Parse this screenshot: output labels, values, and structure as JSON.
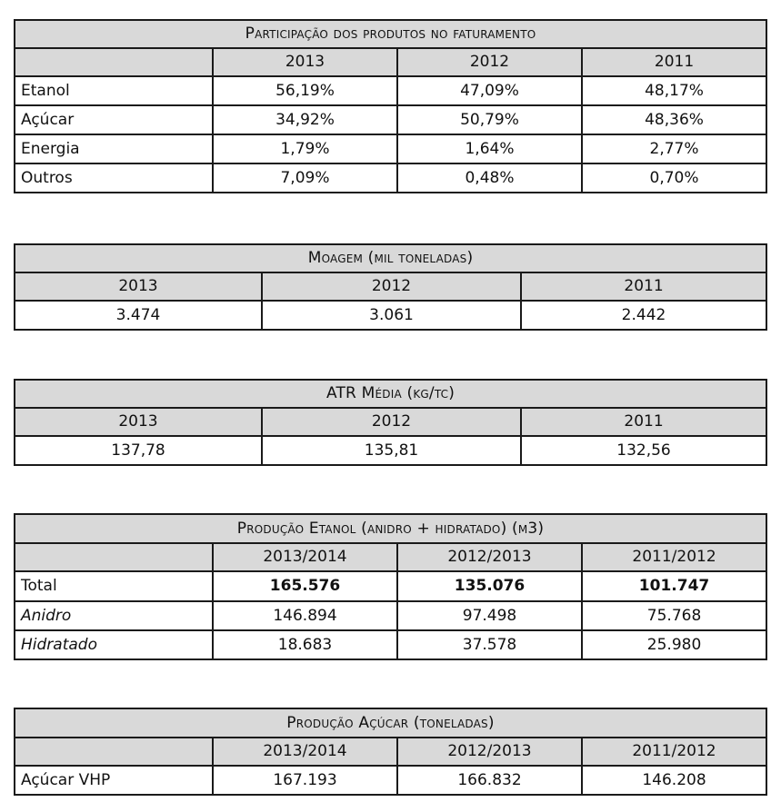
{
  "participacao": {
    "title": "Participação dos produtos no faturamento",
    "years": [
      "2013",
      "2012",
      "2011"
    ],
    "rows": [
      {
        "label": "Etanol",
        "values": [
          "56,19%",
          "47,09%",
          "48,17%"
        ]
      },
      {
        "label": "Açúcar",
        "values": [
          "34,92%",
          "50,79%",
          "48,36%"
        ]
      },
      {
        "label": "Energia",
        "values": [
          "1,79%",
          "1,64%",
          "2,77%"
        ]
      },
      {
        "label": "Outros",
        "values": [
          "7,09%",
          "0,48%",
          "0,70%"
        ]
      }
    ]
  },
  "moagem": {
    "title": "Moagem (mil toneladas)",
    "years": [
      "2013",
      "2012",
      "2011"
    ],
    "values": [
      "3.474",
      "3.061",
      "2.442"
    ]
  },
  "atr": {
    "title": "ATR Média (kg/tc)",
    "years": [
      "2013",
      "2012",
      "2011"
    ],
    "values": [
      "137,78",
      "135,81",
      "132,56"
    ]
  },
  "etanol": {
    "title": "Produção Etanol (anidro + hidratado) (m3)",
    "years": [
      "2013/2014",
      "2012/2013",
      "2011/2012"
    ],
    "rows": [
      {
        "label": "Total",
        "values": [
          "165.576",
          "135.076",
          "101.747"
        ]
      },
      {
        "label": "Anidro",
        "values": [
          "146.894",
          "97.498",
          "75.768"
        ]
      },
      {
        "label": "Hidratado",
        "values": [
          "18.683",
          "37.578",
          "25.980"
        ]
      }
    ]
  },
  "acucar": {
    "title": "Produção Açúcar (toneladas)",
    "years": [
      "2013/2014",
      "2012/2013",
      "2011/2012"
    ],
    "rows": [
      {
        "label": "Açúcar VHP",
        "values": [
          "167.193",
          "166.832",
          "146.208"
        ]
      }
    ]
  }
}
